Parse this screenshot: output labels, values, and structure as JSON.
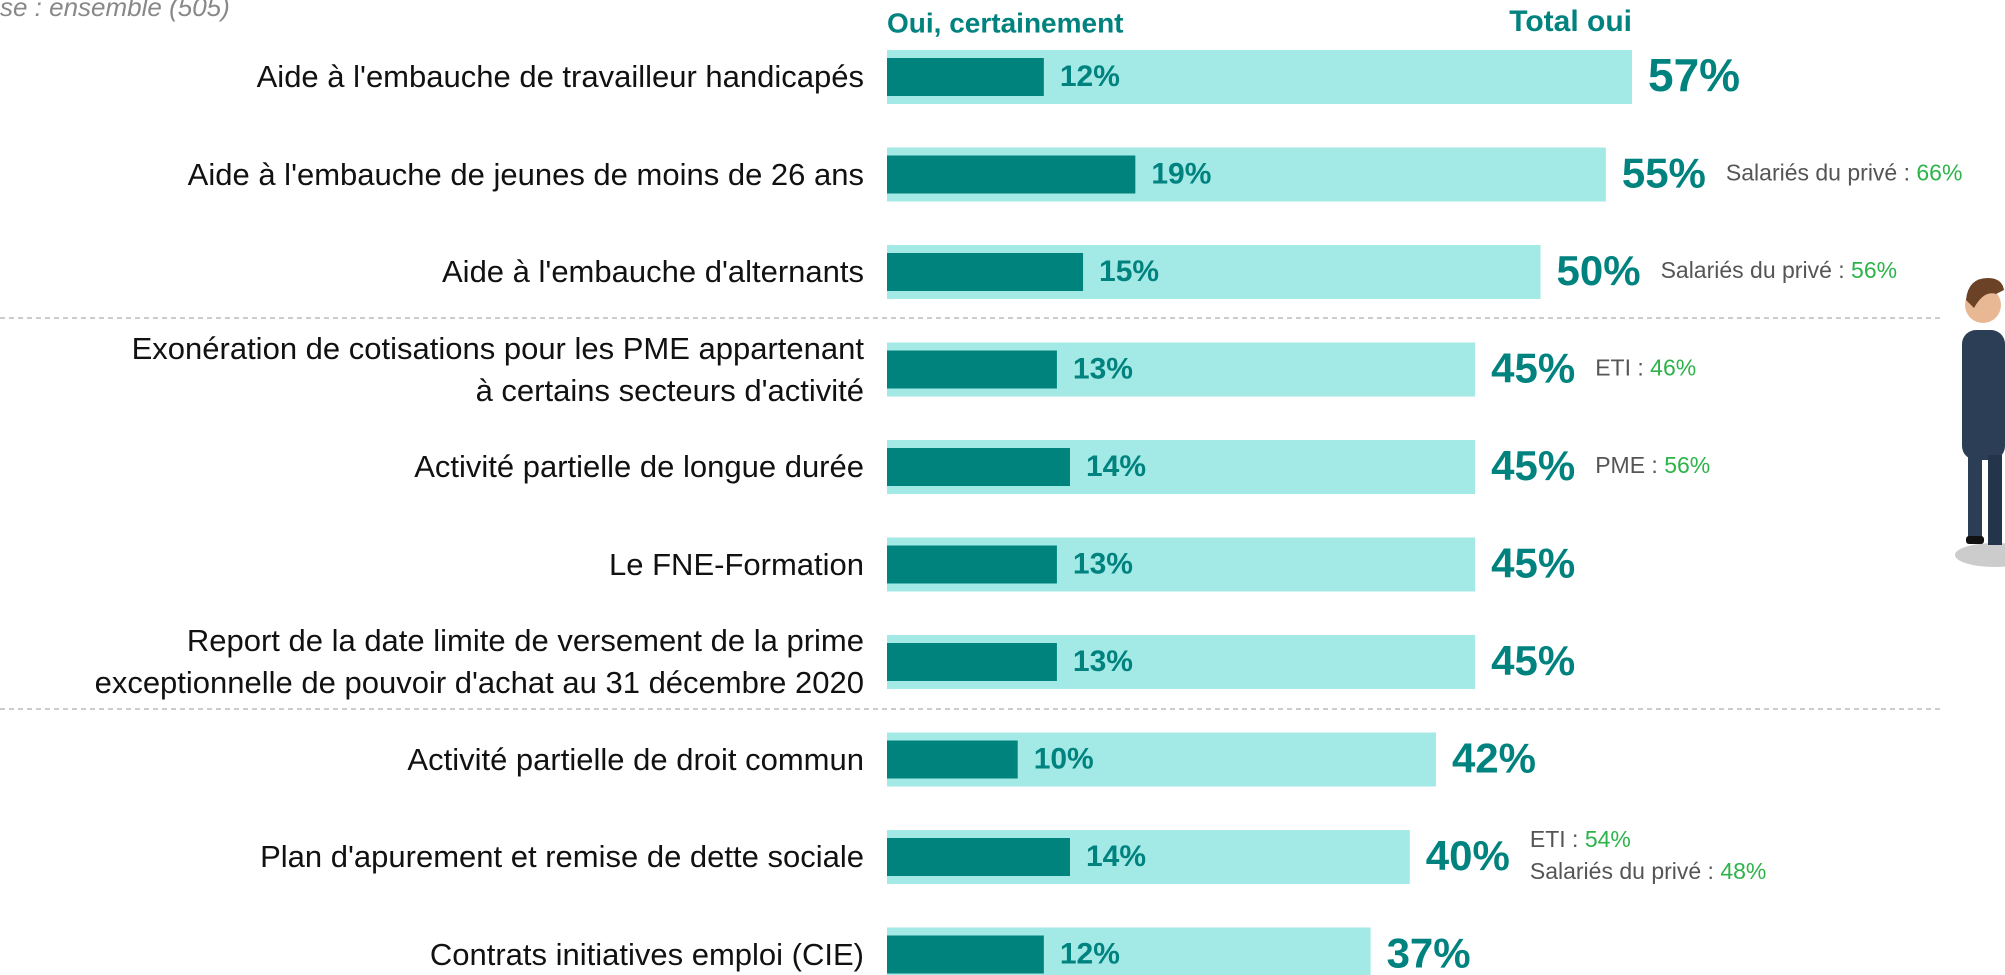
{
  "chart_data": {
    "type": "bar",
    "subtitle": "se : ensemble (505)",
    "categories": [
      "Aide à l'embauche de travailleur handicapés",
      "Aide à l'embauche de jeunes de moins de 26 ans",
      "Aide à l'embauche d'alternants",
      "Exonération de cotisations pour les PME appartenant\nà certains secteurs d'activité",
      "Activité partielle de longue durée",
      "Le FNE-Formation",
      "Report de la date limite de versement de la prime\nexceptionnelle de pouvoir d'achat au 31 décembre 2020",
      "Activité partielle de droit commun",
      "Plan d'apurement et remise de dette sociale",
      "Contrats initiatives emploi (CIE)"
    ],
    "series": [
      {
        "name": "Total oui",
        "color": "#a3e9e6",
        "values": [
          57,
          55,
          50,
          45,
          45,
          45,
          45,
          42,
          40,
          37
        ],
        "value_labels": [
          "57%",
          "55%",
          "50%",
          "45%",
          "45%",
          "45%",
          "45%",
          "42%",
          "40%",
          "37%"
        ]
      },
      {
        "name": "Oui, certainement",
        "color": "#00837d",
        "values": [
          12,
          19,
          15,
          13,
          14,
          13,
          13,
          10,
          14,
          12
        ],
        "value_labels": [
          "12%",
          "19%",
          "15%",
          "13%",
          "14%",
          "13%",
          "13%",
          "10%",
          "14%",
          "12%"
        ]
      }
    ],
    "notes": [
      [],
      [
        {
          "label": "Salariés du privé :",
          "value": "66%"
        }
      ],
      [
        {
          "label": "Salariés du privé :",
          "value": "56%"
        }
      ],
      [
        {
          "label": "ETI :",
          "value": "46%"
        }
      ],
      [
        {
          "label": "PME :",
          "value": "56%"
        }
      ],
      [],
      [],
      [],
      [
        {
          "label": "ETI :",
          "value": "54%"
        },
        {
          "label": "Salariés du privé :",
          "value": "48%"
        }
      ],
      []
    ],
    "xlim": [
      0,
      100
    ]
  }
}
